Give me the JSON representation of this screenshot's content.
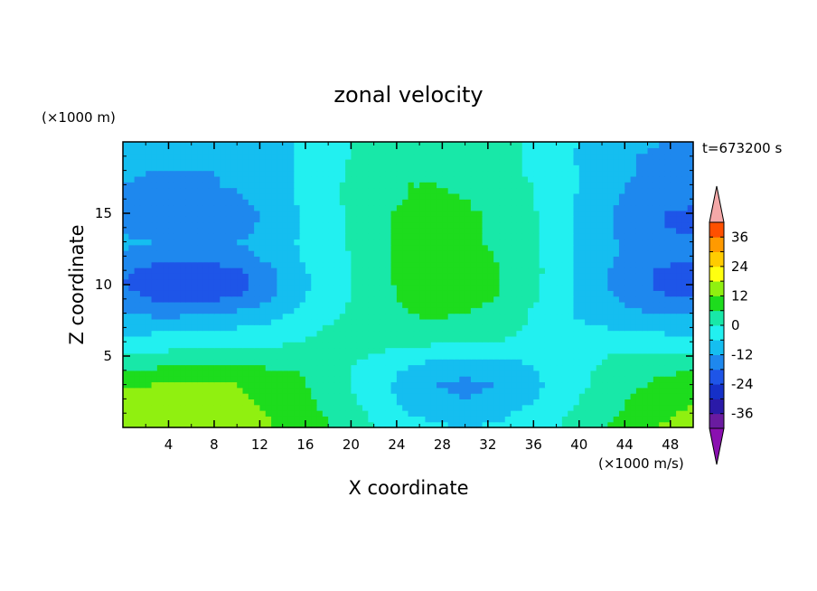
{
  "chart_data": {
    "type": "heatmap",
    "title": "zonal velocity",
    "xlabel": "X coordinate",
    "ylabel": "Z coordinate",
    "x_unit_label": "(×1000 m/s)",
    "y_unit_label": "(×1000 m)",
    "time_label": "t=673200 s",
    "xlim": [
      0,
      50
    ],
    "ylim": [
      0,
      20
    ],
    "x_ticks": [
      4,
      8,
      12,
      16,
      20,
      24,
      28,
      32,
      36,
      40,
      44,
      48
    ],
    "y_ticks": [
      5,
      10,
      15
    ],
    "colorbar": {
      "ticks": [
        36,
        24,
        12,
        0,
        -12,
        -24,
        -36
      ],
      "levels": [
        -42,
        -36,
        -30,
        -24,
        -18,
        -12,
        -6,
        0,
        6,
        12,
        18,
        24,
        30,
        36,
        42
      ],
      "colors": [
        "#6a1ba0",
        "#2a1aa8",
        "#1530c8",
        "#1e55e8",
        "#1e88ee",
        "#15bef0",
        "#22f0f0",
        "#18e8a8",
        "#1ddc1d",
        "#90f010",
        "#ffff10",
        "#ffcc00",
        "#ff9a00",
        "#ff5000",
        "#ff1e1e",
        "#ff2a2a"
      ],
      "under_color": "#8a10b0",
      "over_color": "#f4a8a8"
    },
    "field_grid": {
      "x": [
        0,
        2.5,
        5,
        7.5,
        10,
        12.5,
        15,
        17.5,
        20,
        22.5,
        25,
        27.5,
        30,
        32.5,
        35,
        37.5,
        40,
        42.5,
        45,
        47.5,
        50
      ],
      "z": [
        0,
        1,
        2,
        3,
        4,
        5,
        6,
        7,
        8,
        9,
        10,
        11,
        12,
        13,
        14,
        15,
        16,
        17,
        18,
        19,
        20
      ],
      "values": [
        [
          18,
          17,
          17,
          16,
          15,
          13,
          10,
          7,
          3,
          0,
          -3,
          -5,
          -6,
          -5,
          -3,
          -1,
          3,
          6,
          10,
          13,
          14
        ],
        [
          16,
          16,
          16,
          15,
          14,
          12,
          9,
          6,
          2,
          -2,
          -6,
          -8,
          -9,
          -8,
          -5,
          -2,
          1,
          5,
          8,
          11,
          13
        ],
        [
          14,
          14,
          15,
          14,
          13,
          11,
          8,
          5,
          1,
          -3,
          -8,
          -11,
          -12,
          -11,
          -8,
          -4,
          0,
          3,
          7,
          10,
          11
        ],
        [
          11,
          12,
          13,
          13,
          12,
          10,
          8,
          4,
          0,
          -4,
          -9,
          -12,
          -13,
          -12,
          -9,
          -5,
          -1,
          2,
          5,
          8,
          9
        ],
        [
          6,
          7,
          8,
          8,
          8,
          7,
          6,
          3,
          0,
          -3,
          -7,
          -10,
          -11,
          -10,
          -8,
          -4,
          -1,
          1,
          3,
          5,
          6
        ],
        [
          1,
          1,
          2,
          2,
          2,
          2,
          2,
          2,
          1,
          -1,
          -3,
          -5,
          -6,
          -6,
          -5,
          -3,
          -1,
          0,
          1,
          2,
          2
        ],
        [
          -3,
          -3,
          -2,
          -2,
          -2,
          -1,
          0,
          1,
          2,
          2,
          2,
          1,
          1,
          0,
          -1,
          -2,
          -2,
          -3,
          -3,
          -3,
          -3
        ],
        [
          -8,
          -8,
          -8,
          -7,
          -6,
          -5,
          -2,
          0,
          2,
          3,
          4,
          4,
          3,
          2,
          0,
          -3,
          -5,
          -6,
          -7,
          -8,
          -8
        ],
        [
          -12,
          -13,
          -13,
          -12,
          -11,
          -9,
          -5,
          -2,
          1,
          4,
          6,
          7,
          6,
          4,
          1,
          -3,
          -7,
          -9,
          -11,
          -12,
          -13
        ],
        [
          -16,
          -18,
          -19,
          -19,
          -17,
          -13,
          -8,
          -3,
          0,
          4,
          7,
          9,
          9,
          6,
          2,
          -2,
          -7,
          -11,
          -14,
          -17,
          -18
        ],
        [
          -18,
          -21,
          -23,
          -24,
          -21,
          -15,
          -9,
          -4,
          0,
          4,
          8,
          11,
          10,
          7,
          3,
          -2,
          -7,
          -12,
          -16,
          -20,
          -22
        ],
        [
          -17,
          -20,
          -21,
          -21,
          -19,
          -14,
          -8,
          -4,
          0,
          5,
          8,
          10,
          9,
          7,
          3,
          -1,
          -7,
          -12,
          -16,
          -19,
          -20
        ],
        [
          -13,
          -15,
          -16,
          -15,
          -14,
          -11,
          -7,
          -3,
          0,
          5,
          8,
          9,
          8,
          6,
          2,
          -2,
          -7,
          -11,
          -14,
          -16,
          -17
        ],
        [
          -11,
          -12,
          -13,
          -13,
          -12,
          -10,
          -6,
          -3,
          1,
          5,
          7,
          8,
          7,
          5,
          2,
          -2,
          -7,
          -11,
          -14,
          -16,
          -17
        ],
        [
          -13,
          -15,
          -16,
          -16,
          -14,
          -11,
          -7,
          -3,
          1,
          5,
          7,
          8,
          7,
          5,
          2,
          -2,
          -7,
          -11,
          -15,
          -18,
          -19
        ],
        [
          -14,
          -16,
          -18,
          -18,
          -15,
          -11,
          -7,
          -3,
          1,
          5,
          7,
          8,
          7,
          5,
          2,
          -2,
          -7,
          -11,
          -15,
          -18,
          -19
        ],
        [
          -13,
          -15,
          -16,
          -16,
          -13,
          -10,
          -6,
          -2,
          1,
          5,
          6,
          7,
          6,
          4,
          1,
          -2,
          -7,
          -11,
          -14,
          -16,
          -17
        ],
        [
          -12,
          -13,
          -13,
          -13,
          -11,
          -9,
          -6,
          -2,
          1,
          4,
          6,
          6,
          5,
          4,
          1,
          -2,
          -6,
          -10,
          -13,
          -14,
          -15
        ],
        [
          -11,
          -12,
          -12,
          -12,
          -11,
          -9,
          -6,
          -3,
          1,
          4,
          5,
          6,
          5,
          3,
          0,
          -3,
          -6,
          -10,
          -12,
          -13,
          -14
        ],
        [
          -11,
          -11,
          -12,
          -12,
          -11,
          -9,
          -6,
          -3,
          0,
          3,
          5,
          5,
          4,
          3,
          0,
          -3,
          -7,
          -10,
          -12,
          -13,
          -13
        ],
        [
          -10,
          -11,
          -11,
          -11,
          -10,
          -8,
          -6,
          -3,
          0,
          3,
          4,
          5,
          4,
          2,
          0,
          -3,
          -6,
          -9,
          -11,
          -12,
          -12
        ]
      ]
    }
  }
}
